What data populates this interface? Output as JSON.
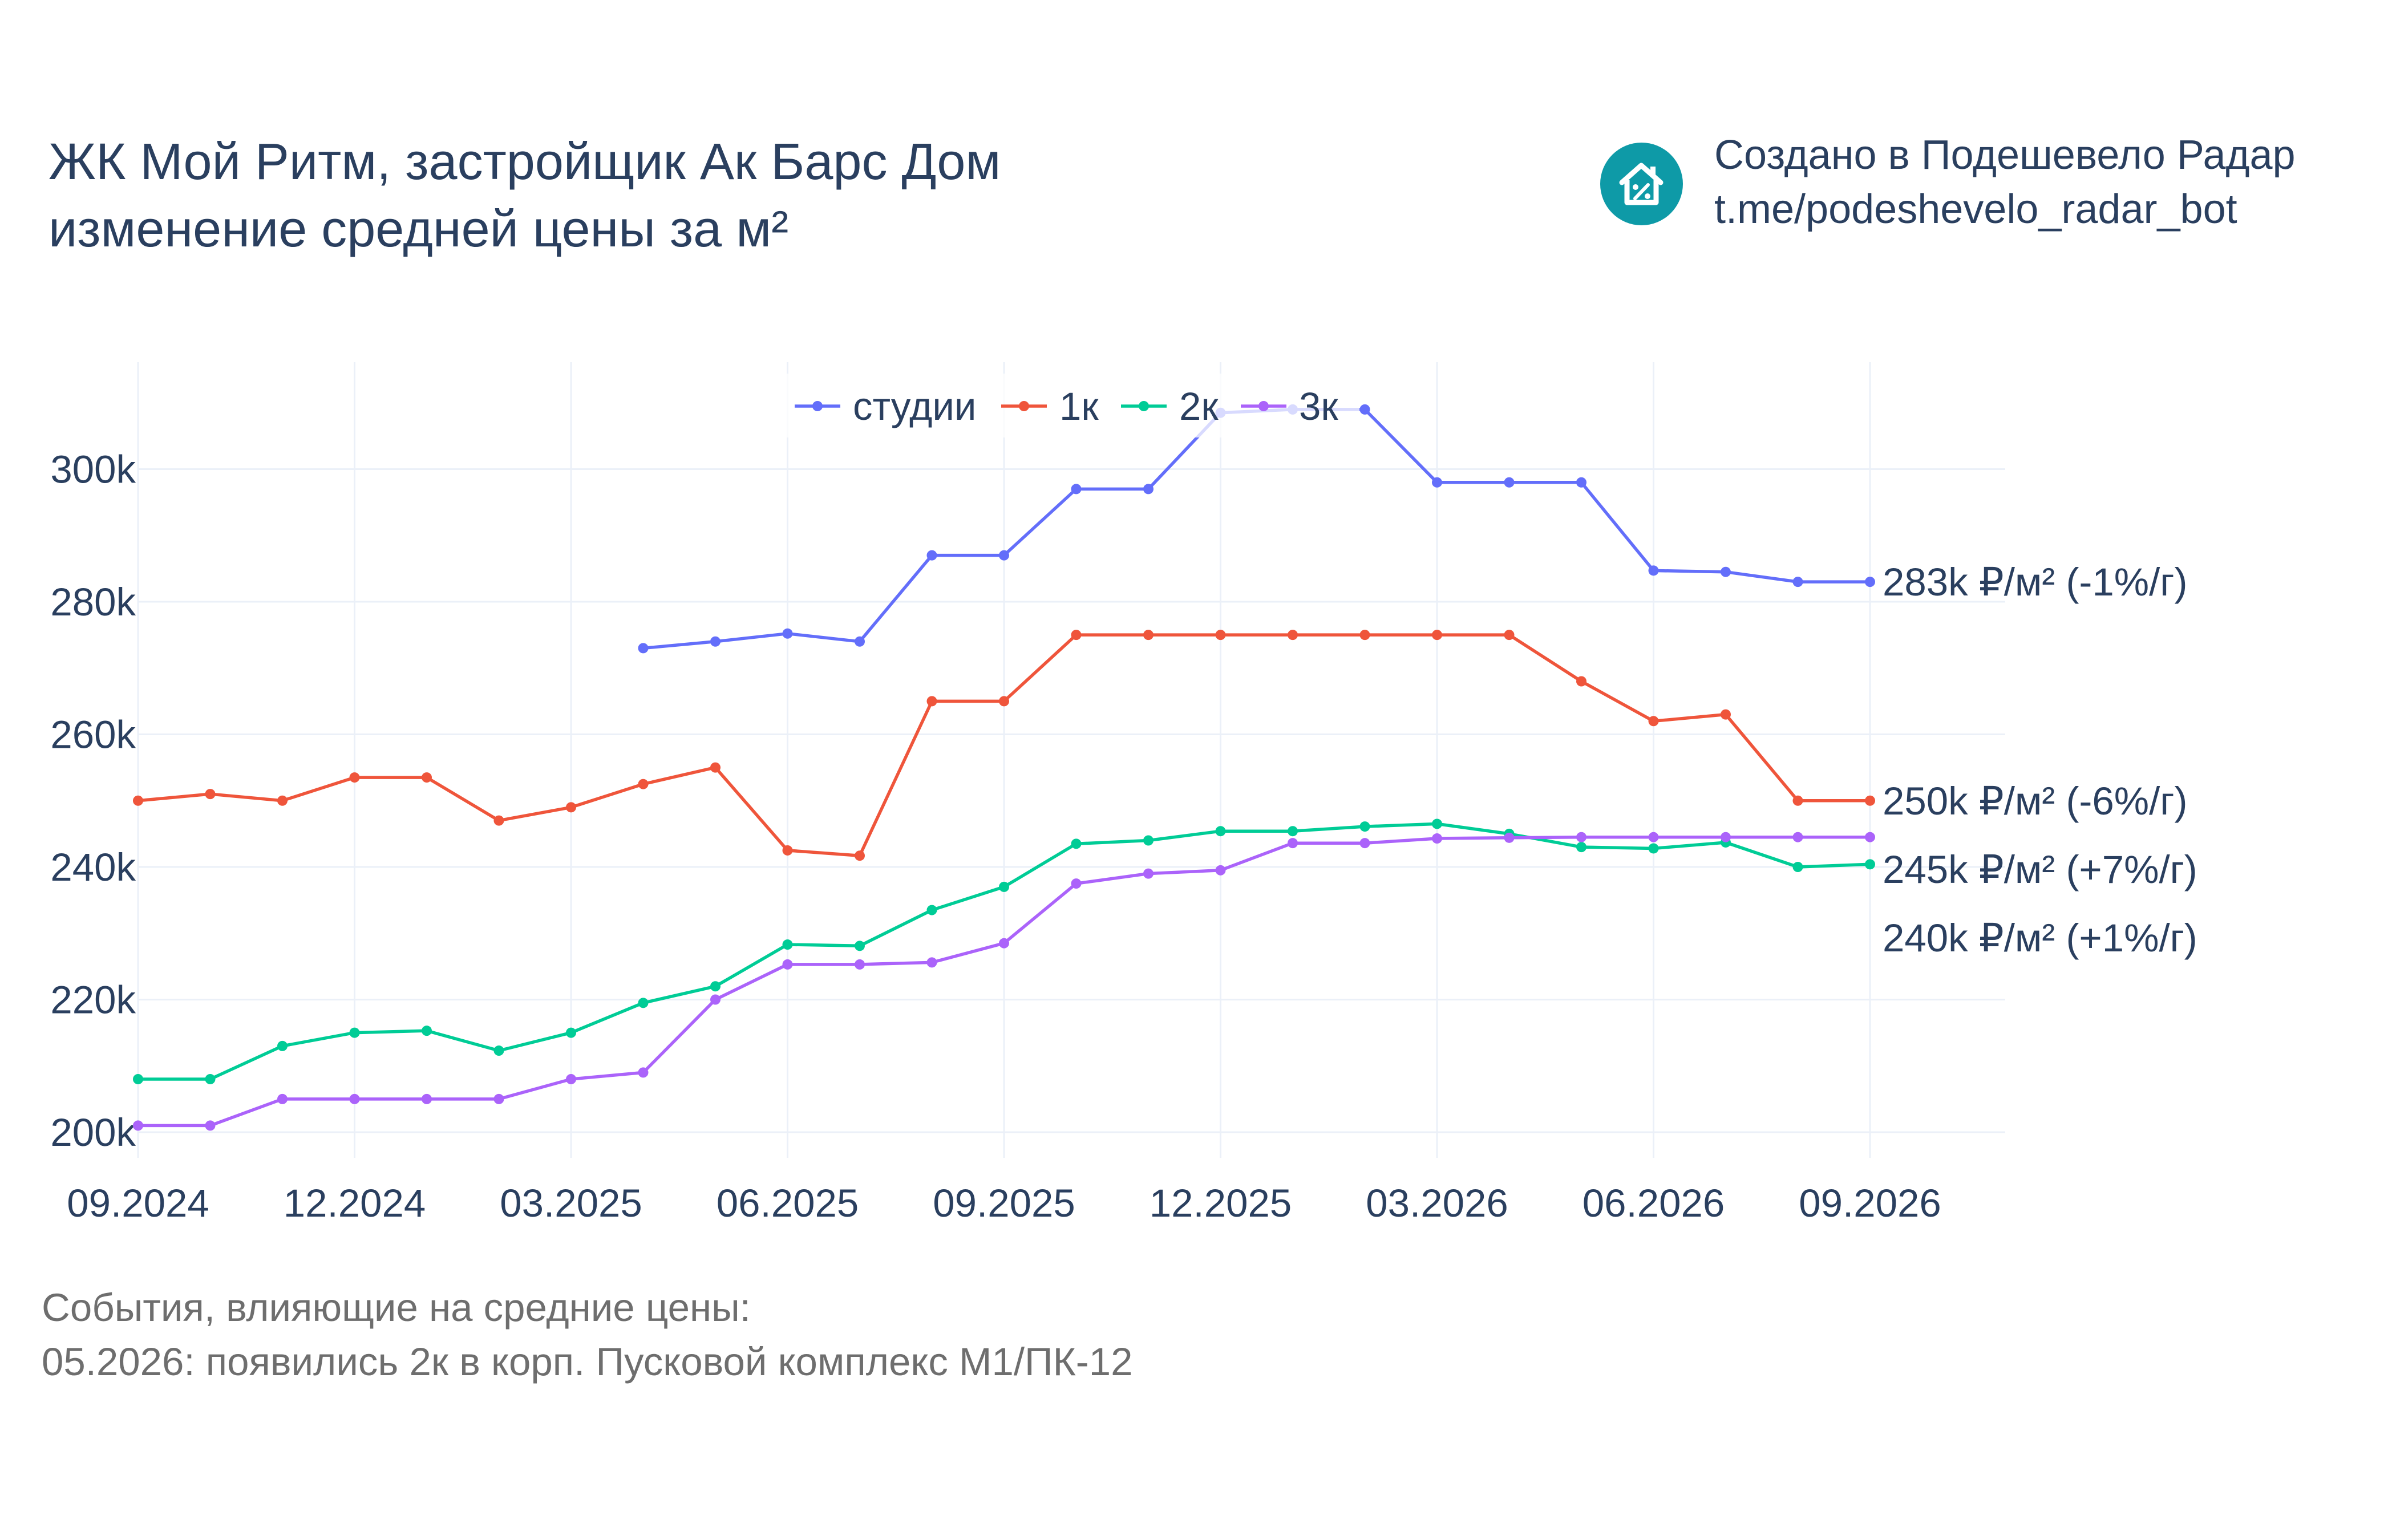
{
  "header": {
    "title_lines": [
      "ЖК Мой Ритм, застройщик Ак Барс Дом",
      "изменение средней цены за м²"
    ]
  },
  "credit": {
    "line1": "Создано в Подешевело Радар",
    "line2": "t.me/podeshevelo_radar_bot",
    "logo_icon": "house-percent-icon",
    "logo_color": "#0e9aa7"
  },
  "events": {
    "heading": "События, влияющие на средние цены:",
    "items": [
      "05.2026: появились 2к в корп. Пусковой комплекс М1/ПК-12"
    ]
  },
  "chart_data": {
    "type": "line",
    "x": [
      "2024-09",
      "2024-10",
      "2024-11",
      "2024-12",
      "2025-01",
      "2025-02",
      "2025-03",
      "2025-04",
      "2025-05",
      "2025-06",
      "2025-07",
      "2025-08",
      "2025-09",
      "2025-10",
      "2025-11",
      "2025-12",
      "2026-01",
      "2026-02",
      "2026-03",
      "2026-04",
      "2026-05",
      "2026-06",
      "2026-07",
      "2026-08",
      "2026-09"
    ],
    "x_ticks": [
      "09.2024",
      "12.2024",
      "03.2025",
      "06.2025",
      "09.2025",
      "12.2025",
      "03.2026",
      "06.2026",
      "09.2026"
    ],
    "y_ticks": [
      "200k",
      "220k",
      "240k",
      "260k",
      "280k",
      "300k"
    ],
    "ylim": [
      196000,
      316000
    ],
    "grid": true,
    "legend": "top-center",
    "series": [
      {
        "name": "студии",
        "color": "#636efa",
        "end_label": "283k ₽/м² (-1%/г)",
        "values": [
          null,
          null,
          null,
          null,
          null,
          null,
          null,
          273000,
          274000,
          275200,
          274000,
          287000,
          287000,
          297000,
          297000,
          308500,
          309000,
          309000,
          298000,
          298000,
          298000,
          284700,
          284500,
          283000,
          283000
        ]
      },
      {
        "name": "1к",
        "color": "#ef553b",
        "end_label": "250k ₽/м² (-6%/г)",
        "values": [
          250000,
          251000,
          250000,
          253500,
          253500,
          247000,
          249000,
          252500,
          255000,
          242500,
          241700,
          265000,
          265000,
          275000,
          275000,
          275000,
          275000,
          275000,
          275000,
          275000,
          268000,
          262000,
          263000,
          250000,
          250000
        ]
      },
      {
        "name": "2к",
        "color": "#00cc96",
        "end_label": "240k ₽/м² (+1%/г)",
        "values": [
          208000,
          208000,
          213000,
          215000,
          215300,
          212300,
          215000,
          219500,
          222000,
          228300,
          228100,
          233500,
          237000,
          243500,
          244000,
          245400,
          245400,
          246100,
          246500,
          245000,
          243000,
          242800,
          243700,
          240000,
          240400
        ]
      },
      {
        "name": "3к",
        "color": "#ab63fa",
        "end_label": "245k ₽/м² (+7%/г)",
        "values": [
          201000,
          201000,
          205000,
          205000,
          205000,
          205000,
          208000,
          209000,
          220000,
          225300,
          225300,
          225600,
          228500,
          237500,
          239000,
          239500,
          243600,
          243600,
          244300,
          244400,
          244500,
          244500,
          244500,
          244500,
          244500
        ]
      }
    ]
  }
}
